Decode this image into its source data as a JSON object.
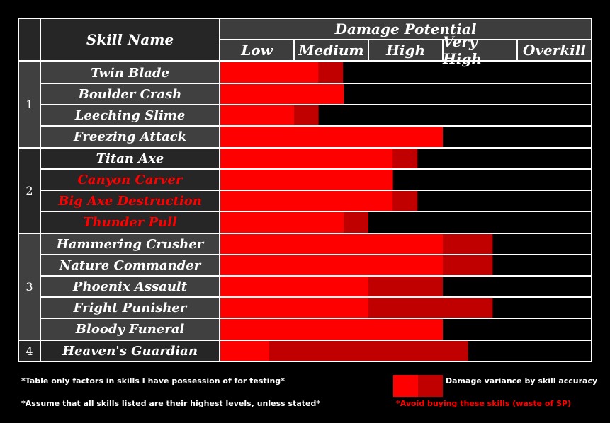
{
  "table": {
    "skill_header": "Skill Name",
    "damage_header": "Damage Potential",
    "levels": [
      "Low",
      "Medium",
      "High",
      "Very High",
      "Overkill"
    ]
  },
  "groups": [
    "1",
    "2",
    "3",
    "4"
  ],
  "legend": {
    "variance_label": "Damage variance by skill accuracy",
    "avoid_label": "*Avoid buying these skills (waste of SP)",
    "note_1": "*Table only factors in skills I have possession of for testing*",
    "note_2": "*Assume that all skills listed are their highest levels, unless stated*"
  },
  "colors": {
    "base": "#ff0000",
    "variance": "#c00000",
    "avoid_text": "#ff0000",
    "grid": "#ffffff",
    "header_bg": "#3d3d3d",
    "row_bg_dark": "#262626",
    "row_bg_light": "#404040",
    "plot_bg": "#000000"
  },
  "chart_data": {
    "type": "bar",
    "orientation": "horizontal",
    "stacked": true,
    "title": "Damage Potential",
    "xlabel": "Damage Potential",
    "ylabel": "Skill Name",
    "x_scale_labels": [
      "Low",
      "Medium",
      "High",
      "Very High",
      "Overkill"
    ],
    "xlim": [
      0,
      5
    ],
    "categories": [
      "Twin Blade",
      "Boulder Crash",
      "Leeching Slime",
      "Freezing Attack",
      "Titan Axe",
      "Canyon Carver",
      "Big Axe Destruction",
      "Thunder Pull",
      "Hammering Crusher",
      "Nature Commander",
      "Phoenix Assault",
      "Fright Punisher",
      "Bloody Funeral",
      "Heaven's Guardian"
    ],
    "group": [
      1,
      1,
      1,
      1,
      2,
      2,
      2,
      2,
      3,
      3,
      3,
      3,
      3,
      4
    ],
    "avoid": [
      false,
      false,
      false,
      false,
      false,
      true,
      true,
      true,
      false,
      false,
      false,
      false,
      false,
      false
    ],
    "series": [
      {
        "name": "",
        "values": [
          1.33,
          1.67,
          1.0,
          3.0,
          2.33,
          2.33,
          2.33,
          1.67,
          3.0,
          3.0,
          2.0,
          2.0,
          3.0,
          0.67
        ]
      },
      {
        "name": "Damage variance by skill accuracy",
        "values": [
          0.33,
          0,
          0.33,
          0,
          0.33,
          0,
          0.33,
          0.33,
          0.67,
          0.67,
          1.0,
          1.67,
          0,
          2.67
        ]
      }
    ]
  }
}
